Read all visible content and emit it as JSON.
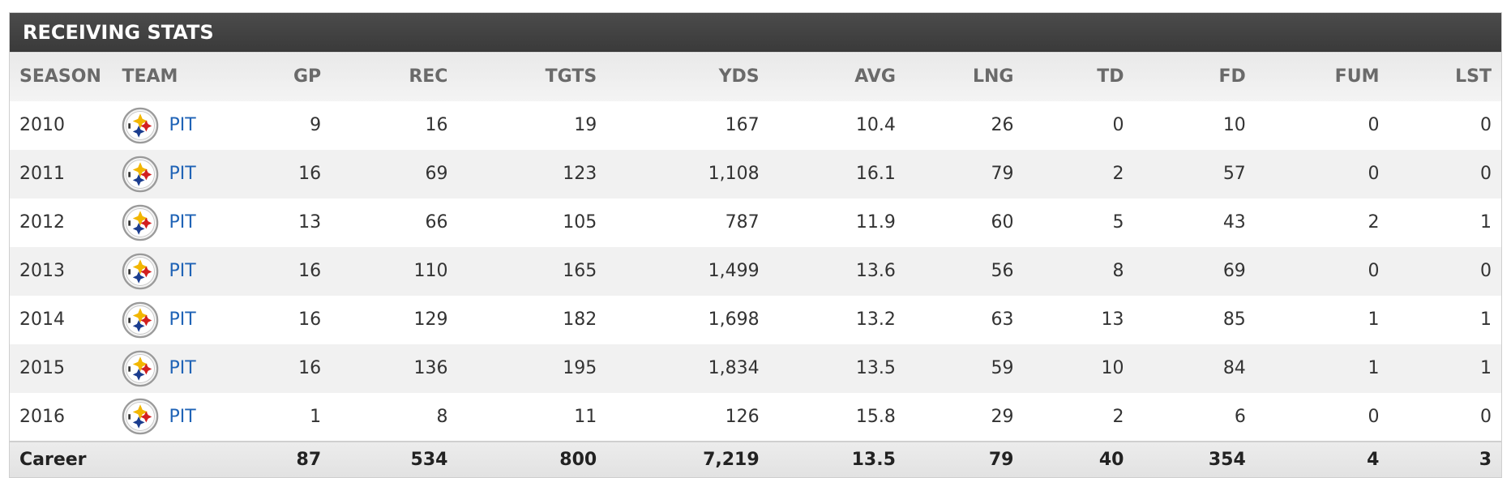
{
  "section": {
    "title": "RECEIVING STATS"
  },
  "columns": [
    "SEASON",
    "TEAM",
    "GP",
    "REC",
    "TGTS",
    "YDS",
    "AVG",
    "LNG",
    "TD",
    "FD",
    "FUM",
    "LST"
  ],
  "rows": [
    {
      "season": "2010",
      "team": "PIT",
      "gp": "9",
      "rec": "16",
      "tgts": "19",
      "yds": "167",
      "avg": "10.4",
      "lng": "26",
      "td": "0",
      "fd": "10",
      "fum": "0",
      "lst": "0"
    },
    {
      "season": "2011",
      "team": "PIT",
      "gp": "16",
      "rec": "69",
      "tgts": "123",
      "yds": "1,108",
      "avg": "16.1",
      "lng": "79",
      "td": "2",
      "fd": "57",
      "fum": "0",
      "lst": "0"
    },
    {
      "season": "2012",
      "team": "PIT",
      "gp": "13",
      "rec": "66",
      "tgts": "105",
      "yds": "787",
      "avg": "11.9",
      "lng": "60",
      "td": "5",
      "fd": "43",
      "fum": "2",
      "lst": "1"
    },
    {
      "season": "2013",
      "team": "PIT",
      "gp": "16",
      "rec": "110",
      "tgts": "165",
      "yds": "1,499",
      "avg": "13.6",
      "lng": "56",
      "td": "8",
      "fd": "69",
      "fum": "0",
      "lst": "0"
    },
    {
      "season": "2014",
      "team": "PIT",
      "gp": "16",
      "rec": "129",
      "tgts": "182",
      "yds": "1,698",
      "avg": "13.2",
      "lng": "63",
      "td": "13",
      "fd": "85",
      "fum": "1",
      "lst": "1"
    },
    {
      "season": "2015",
      "team": "PIT",
      "gp": "16",
      "rec": "136",
      "tgts": "195",
      "yds": "1,834",
      "avg": "13.5",
      "lng": "59",
      "td": "10",
      "fd": "84",
      "fum": "1",
      "lst": "1"
    },
    {
      "season": "2016",
      "team": "PIT",
      "gp": "1",
      "rec": "8",
      "tgts": "11",
      "yds": "126",
      "avg": "15.8",
      "lng": "29",
      "td": "2",
      "fd": "6",
      "fum": "0",
      "lst": "0"
    }
  ],
  "career": {
    "label": "Career",
    "gp": "87",
    "rec": "534",
    "tgts": "800",
    "yds": "7,219",
    "avg": "13.5",
    "lng": "79",
    "td": "40",
    "fd": "354",
    "fum": "4",
    "lst": "3"
  },
  "team_logo_icon": "steelers-logo-icon",
  "colors": {
    "title_bar": "#444444",
    "link": "#1f63b6",
    "stripe": "#f1f1f1"
  }
}
